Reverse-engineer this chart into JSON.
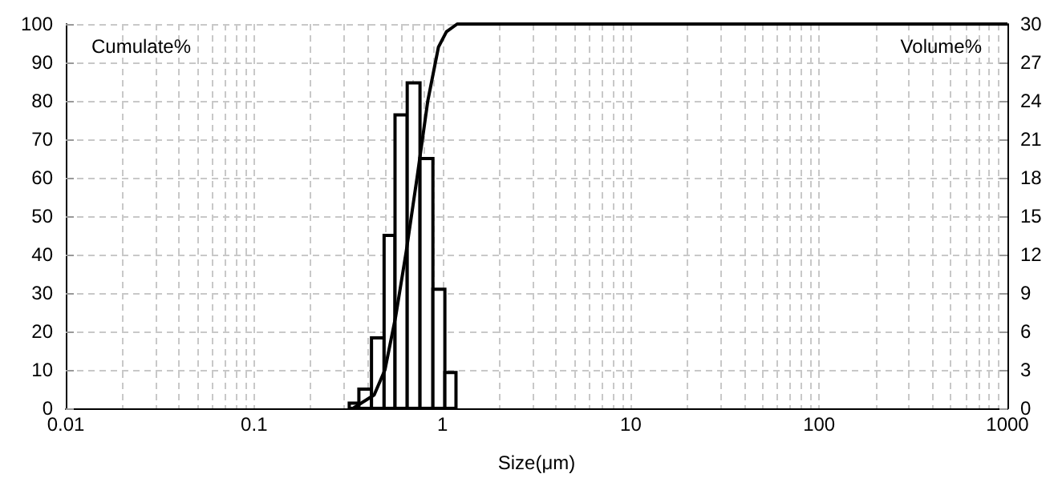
{
  "chart_data": {
    "type": "histogram",
    "xlabel": "Size(μm)",
    "ylabel": "Cumulate%",
    "y2label": "Volume%",
    "log": "x",
    "grid": true,
    "xlim": [
      0.01,
      1000
    ],
    "xticks": [
      0.01,
      {
        "value": 0.02,
        "label": null
      },
      {
        "value": 0.03,
        "label": null
      },
      {
        "value": 0.04,
        "label": null
      },
      {
        "value": 0.05,
        "label": null
      },
      {
        "value": 0.06,
        "label": null
      },
      {
        "value": 0.07,
        "label": null
      },
      {
        "value": 0.08,
        "label": null
      },
      {
        "value": 0.09,
        "label": null
      },
      0.1,
      {
        "value": 0.2,
        "label": null
      },
      {
        "value": 0.3,
        "label": null
      },
      {
        "value": 0.4,
        "label": null
      },
      {
        "value": 0.5,
        "label": null
      },
      {
        "value": 0.6,
        "label": null
      },
      {
        "value": 0.7,
        "label": null
      },
      {
        "value": 0.8,
        "label": null
      },
      {
        "value": 0.9,
        "label": null
      },
      1,
      {
        "value": 2,
        "label": null
      },
      {
        "value": 3,
        "label": null
      },
      {
        "value": 4,
        "label": null
      },
      {
        "value": 5,
        "label": null
      },
      {
        "value": 6,
        "label": null
      },
      {
        "value": 7,
        "label": null
      },
      {
        "value": 8,
        "label": null
      },
      {
        "value": 9,
        "label": null
      },
      10,
      {
        "value": 20,
        "label": null
      },
      {
        "value": 30,
        "label": null
      },
      {
        "value": 40,
        "label": null
      },
      {
        "value": 50,
        "label": null
      },
      {
        "value": 60,
        "label": null
      },
      {
        "value": 70,
        "label": null
      },
      {
        "value": 80,
        "label": null
      },
      {
        "value": 90,
        "label": null
      },
      100,
      {
        "value": 200,
        "label": null
      },
      {
        "value": 300,
        "label": null
      },
      {
        "value": 400,
        "label": null
      },
      {
        "value": 500,
        "label": null
      },
      {
        "value": 600,
        "label": null
      },
      {
        "value": 700,
        "label": null
      },
      {
        "value": 800,
        "label": null
      },
      {
        "value": 900,
        "label": null
      },
      1000
    ],
    "ylim": [
      0,
      100
    ],
    "yticks": [
      0,
      10,
      20,
      30,
      40,
      50,
      60,
      70,
      80,
      90,
      100
    ],
    "y2lim": [
      0,
      30
    ],
    "y2ticks": [
      0,
      3,
      6,
      9,
      12,
      15,
      18,
      21,
      24,
      27,
      30
    ],
    "series": [
      {
        "axis": "y2",
        "color": "#000000",
        "bins": [
          0.32,
          0.36,
          0.42,
          0.49,
          0.56,
          0.65,
          0.76,
          0.89,
          1.03,
          1.18
        ],
        "values": [
          0.4,
          1.5,
          5.5,
          13.5,
          22.9,
          25.4,
          19.5,
          9.3,
          2.8
        ]
      },
      {
        "type": "line",
        "axis": "y",
        "color": "#000000",
        "marker": "none",
        "line_style": "solid",
        "x": [
          0.335,
          0.434,
          0.495,
          0.565,
          0.643,
          0.733,
          0.836,
          0.952,
          1.05,
          1.197,
          1000
        ],
        "values": [
          0,
          3.5,
          10,
          24,
          41,
          60,
          80,
          94,
          98,
          100,
          100
        ]
      }
    ]
  }
}
